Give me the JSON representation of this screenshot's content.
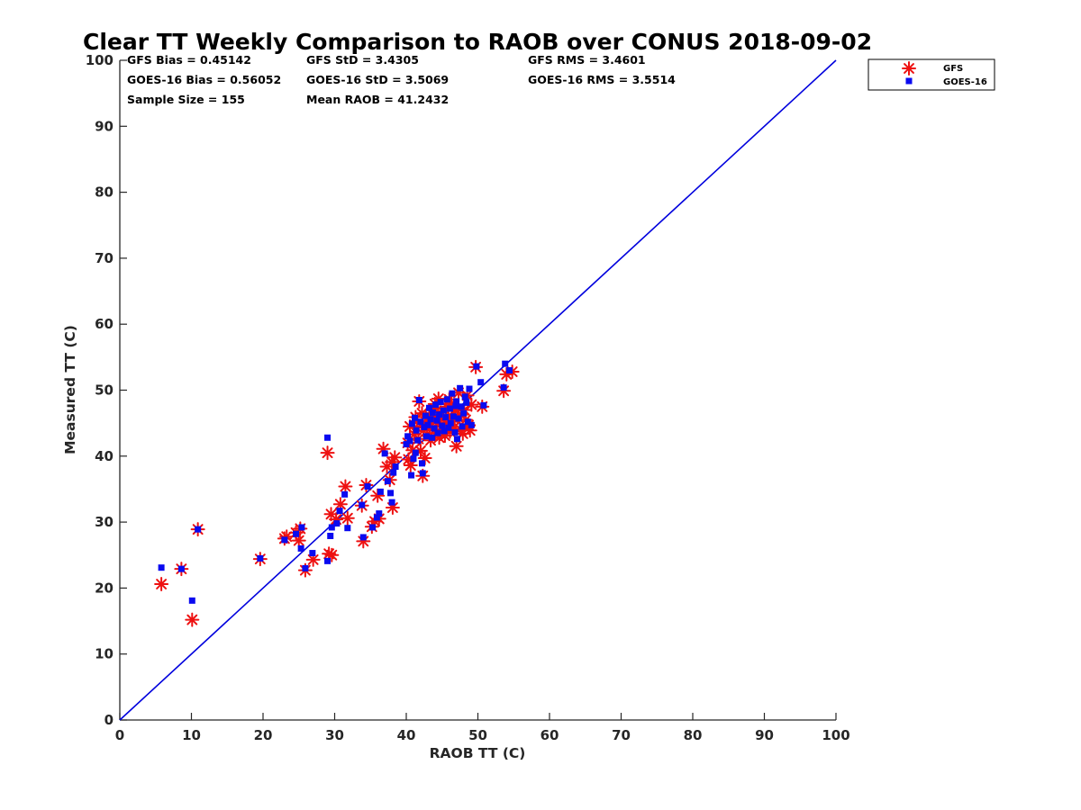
{
  "chart_data": {
    "type": "scatter",
    "title": "Clear TT Weekly Comparison to RAOB over CONUS 2018-09-02",
    "xlabel": "RAOB TT (C)",
    "ylabel": "Measured TT (C)",
    "xlim": [
      0,
      100
    ],
    "ylim": [
      0,
      100
    ],
    "xticks": [
      "0",
      "10",
      "20",
      "30",
      "40",
      "50",
      "60",
      "70",
      "80",
      "90",
      "100"
    ],
    "yticks": [
      "0",
      "10",
      "20",
      "30",
      "40",
      "50",
      "60",
      "70",
      "80",
      "90",
      "100"
    ],
    "grid": false,
    "legend_position": "top-right",
    "reference_line": {
      "name": "1:1",
      "color": "#0000dd",
      "points": [
        [
          0,
          0
        ],
        [
          100,
          100
        ]
      ]
    },
    "stats": {
      "row1": [
        "GFS Bias = 0.45142",
        "GFS StD = 3.4305",
        "GFS RMS = 3.4601"
      ],
      "row2": [
        "GOES-16 Bias = 0.56052",
        "GOES-16 StD = 3.5069",
        "GOES-16 RMS = 3.5514"
      ],
      "row3": [
        "Sample Size = 155",
        "Mean RAOB = 41.2432"
      ]
    },
    "series": [
      {
        "name": "GFS",
        "marker": "asterisk",
        "color": "#ee1111",
        "points": [
          [
            5.8,
            20.6
          ],
          [
            8.6,
            22.9
          ],
          [
            10.1,
            15.2
          ],
          [
            10.9,
            28.9
          ],
          [
            19.6,
            24.4
          ],
          [
            23.0,
            27.5
          ],
          [
            23.3,
            27.8
          ],
          [
            24.6,
            28.4
          ],
          [
            25.2,
            29.0
          ],
          [
            25.0,
            27.2
          ],
          [
            25.9,
            22.7
          ],
          [
            27.0,
            24.3
          ],
          [
            29.0,
            40.5
          ],
          [
            29.2,
            25.2
          ],
          [
            29.6,
            25.0
          ],
          [
            29.5,
            31.2
          ],
          [
            30.2,
            30.4
          ],
          [
            30.8,
            32.7
          ],
          [
            31.5,
            35.4
          ],
          [
            31.8,
            30.6
          ],
          [
            33.8,
            32.5
          ],
          [
            34.0,
            27.1
          ],
          [
            34.4,
            35.6
          ],
          [
            35.2,
            29.3
          ],
          [
            35.6,
            30.1
          ],
          [
            36.0,
            34.0
          ],
          [
            36.2,
            30.5
          ],
          [
            36.8,
            41.1
          ],
          [
            37.3,
            38.4
          ],
          [
            37.7,
            36.4
          ],
          [
            38.0,
            39.1
          ],
          [
            38.1,
            32.2
          ],
          [
            38.4,
            39.8
          ],
          [
            40.3,
            39.5
          ],
          [
            40.6,
            38.6
          ],
          [
            40.2,
            42.0
          ],
          [
            40.5,
            44.5
          ],
          [
            40.9,
            40.9
          ],
          [
            41.1,
            43.3
          ],
          [
            41.3,
            45.9
          ],
          [
            41.5,
            44.3
          ],
          [
            41.7,
            42.6
          ],
          [
            41.8,
            48.3
          ],
          [
            42.0,
            40.8
          ],
          [
            42.3,
            37.0
          ],
          [
            42.4,
            43.9
          ],
          [
            42.6,
            39.7
          ],
          [
            42.9,
            44.6
          ],
          [
            43.0,
            45.3
          ],
          [
            43.2,
            46.2
          ],
          [
            43.4,
            42.4
          ],
          [
            43.6,
            44.1
          ],
          [
            43.8,
            45.8
          ],
          [
            43.9,
            47.2
          ],
          [
            44.1,
            43.5
          ],
          [
            44.3,
            45.0
          ],
          [
            44.5,
            48.7
          ],
          [
            44.6,
            42.8
          ],
          [
            44.8,
            46.6
          ],
          [
            45.0,
            44.0
          ],
          [
            45.2,
            45.6
          ],
          [
            45.4,
            43.1
          ],
          [
            45.6,
            47.5
          ],
          [
            45.7,
            44.8
          ],
          [
            45.9,
            46.1
          ],
          [
            46.1,
            43.7
          ],
          [
            46.3,
            48.0
          ],
          [
            46.5,
            45.2
          ],
          [
            46.7,
            44.4
          ],
          [
            46.8,
            46.9
          ],
          [
            47.0,
            41.5
          ],
          [
            47.2,
            45.9
          ],
          [
            47.3,
            49.6
          ],
          [
            47.5,
            44.1
          ],
          [
            47.7,
            46.3
          ],
          [
            47.9,
            43.4
          ],
          [
            48.1,
            47.0
          ],
          [
            48.3,
            45.5
          ],
          [
            48.5,
            49.2
          ],
          [
            48.7,
            44.7
          ],
          [
            48.9,
            43.9
          ],
          [
            49.1,
            47.8
          ],
          [
            49.7,
            53.5
          ],
          [
            50.6,
            47.5
          ],
          [
            53.6,
            49.9
          ],
          [
            54.0,
            52.4
          ],
          [
            54.8,
            52.8
          ],
          [
            42.2,
            46.5
          ],
          [
            46.0,
            48.6
          ],
          [
            44.0,
            47.9
          ]
        ]
      },
      {
        "name": "GOES-16",
        "marker": "square",
        "color": "#0a0af0",
        "points": [
          [
            5.8,
            23.1
          ],
          [
            8.6,
            22.9
          ],
          [
            10.1,
            18.1
          ],
          [
            10.9,
            28.9
          ],
          [
            19.6,
            24.5
          ],
          [
            23.0,
            27.3
          ],
          [
            24.6,
            28.2
          ],
          [
            25.3,
            26.0
          ],
          [
            25.4,
            29.2
          ],
          [
            25.9,
            23.0
          ],
          [
            26.9,
            25.3
          ],
          [
            29.0,
            24.1
          ],
          [
            29.0,
            42.8
          ],
          [
            29.4,
            27.9
          ],
          [
            29.6,
            29.2
          ],
          [
            30.3,
            29.8
          ],
          [
            30.7,
            31.7
          ],
          [
            31.4,
            34.2
          ],
          [
            31.8,
            29.1
          ],
          [
            33.8,
            32.6
          ],
          [
            34.0,
            27.7
          ],
          [
            34.6,
            35.4
          ],
          [
            35.3,
            29.2
          ],
          [
            35.9,
            30.7
          ],
          [
            36.2,
            31.3
          ],
          [
            36.4,
            34.6
          ],
          [
            37.0,
            40.4
          ],
          [
            37.4,
            36.2
          ],
          [
            37.8,
            34.4
          ],
          [
            38.0,
            33.0
          ],
          [
            38.2,
            37.5
          ],
          [
            38.5,
            38.4
          ],
          [
            40.0,
            41.8
          ],
          [
            40.2,
            43.0
          ],
          [
            40.5,
            42.3
          ],
          [
            40.7,
            37.1
          ],
          [
            40.8,
            44.9
          ],
          [
            41.0,
            39.6
          ],
          [
            41.2,
            45.8
          ],
          [
            41.4,
            43.9
          ],
          [
            41.6,
            42.4
          ],
          [
            41.8,
            48.5
          ],
          [
            42.0,
            45.2
          ],
          [
            42.2,
            38.9
          ],
          [
            42.3,
            37.4
          ],
          [
            42.5,
            44.4
          ],
          [
            42.7,
            46.1
          ],
          [
            42.8,
            43.0
          ],
          [
            43.0,
            44.7
          ],
          [
            43.2,
            47.3
          ],
          [
            43.4,
            45.6
          ],
          [
            43.6,
            42.8
          ],
          [
            43.7,
            46.6
          ],
          [
            43.9,
            44.2
          ],
          [
            44.1,
            47.8
          ],
          [
            44.3,
            45.4
          ],
          [
            44.4,
            43.5
          ],
          [
            44.6,
            46.3
          ],
          [
            44.8,
            48.2
          ],
          [
            45.0,
            44.6
          ],
          [
            45.2,
            46.9
          ],
          [
            45.3,
            43.8
          ],
          [
            45.5,
            45.9
          ],
          [
            45.7,
            48.6
          ],
          [
            45.9,
            44.3
          ],
          [
            46.1,
            47.2
          ],
          [
            46.2,
            45.0
          ],
          [
            46.4,
            49.5
          ],
          [
            46.6,
            46.0
          ],
          [
            46.8,
            43.6
          ],
          [
            47.0,
            48.3
          ],
          [
            47.1,
            42.6
          ],
          [
            47.3,
            45.7
          ],
          [
            47.5,
            50.3
          ],
          [
            47.7,
            47.5
          ],
          [
            47.8,
            44.5
          ],
          [
            48.0,
            46.5
          ],
          [
            48.2,
            49.0
          ],
          [
            48.4,
            48.1
          ],
          [
            48.6,
            45.2
          ],
          [
            48.8,
            50.2
          ],
          [
            49.1,
            44.7
          ],
          [
            49.8,
            53.6
          ],
          [
            50.4,
            51.2
          ],
          [
            50.8,
            47.7
          ],
          [
            53.6,
            50.4
          ],
          [
            53.8,
            54.0
          ],
          [
            54.4,
            53.0
          ],
          [
            41.3,
            40.5
          ],
          [
            46.9,
            47.6
          ]
        ]
      }
    ]
  }
}
